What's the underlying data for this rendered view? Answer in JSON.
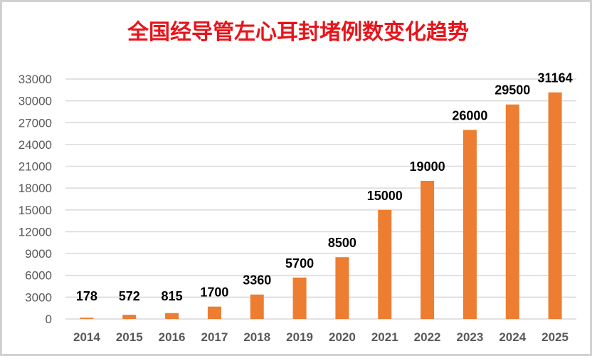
{
  "chart_data": {
    "type": "bar",
    "title": "全国经导管左心耳封堵例数变化趋势",
    "xlabel": "",
    "ylabel": "",
    "categories": [
      "2014",
      "2015",
      "2016",
      "2017",
      "2018",
      "2019",
      "2020",
      "2021",
      "2022",
      "2023",
      "2024",
      "2025"
    ],
    "values": [
      178,
      572,
      815,
      1700,
      3360,
      5700,
      8500,
      15000,
      19000,
      26000,
      29500,
      31164
    ],
    "ylim": [
      0,
      33000
    ],
    "yticks": [
      0,
      3000,
      6000,
      9000,
      12000,
      15000,
      18000,
      21000,
      24000,
      27000,
      30000,
      33000
    ],
    "grid": true,
    "legend": "none",
    "colors": {
      "bar": "#ed7d31",
      "title": "#e8141b",
      "grid": "#d9d9d9"
    }
  }
}
